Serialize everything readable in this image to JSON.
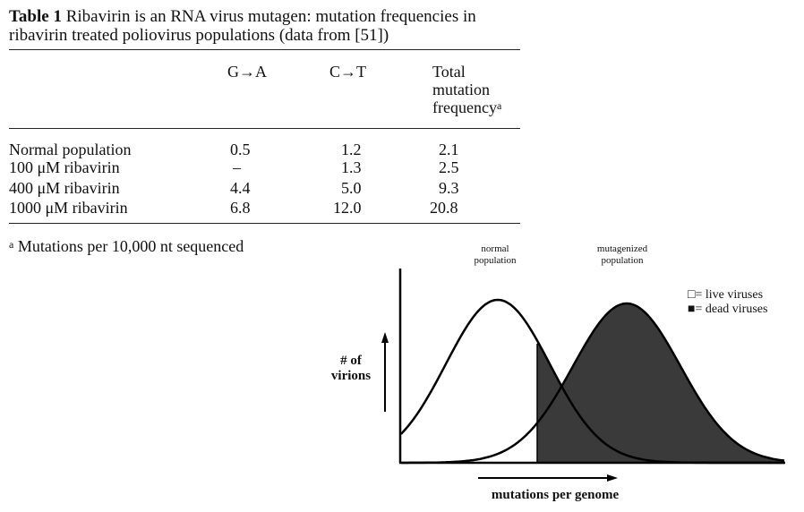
{
  "table": {
    "label": "Table 1",
    "caption": "Ribavirin is an RNA virus mutagen: mutation frequencies in ribavirin treated poliovirus populations (data from [51])",
    "columns": [
      "G→A",
      "C→T",
      "Total mutation frequency"
    ],
    "header_total_lines": [
      "Total",
      "mutation",
      "frequency"
    ],
    "header_total_superscript": "a",
    "rows": [
      {
        "label": "Normal population",
        "ga": "0.5",
        "ct": "1.2",
        "total": "2.1"
      },
      {
        "label": "100 μM ribavirin",
        "ga": "–",
        "ct": "1.3",
        "total": "2.5"
      },
      {
        "label": "400 μM ribavirin",
        "ga": "4.4",
        "ct": "5.0",
        "total": "9.3"
      },
      {
        "label": "1000 μM ribavirin",
        "ga": "6.8",
        "ct": "12.0",
        "total": "20.8"
      }
    ],
    "footnote_marker": "a",
    "footnote": "Mutations per 10,000 nt sequenced"
  },
  "figure": {
    "normal_label_lines": [
      "normal",
      "population"
    ],
    "mutagenized_label_lines": [
      "mutagenized",
      "population"
    ],
    "legend": [
      {
        "symbol": "□",
        "text": "= live viruses"
      },
      {
        "symbol": "■",
        "text": "= dead viruses"
      }
    ],
    "y_label_lines": [
      "# of",
      "virions"
    ],
    "x_label": "mutations per genome",
    "colors": {
      "dead": "#3a3a3a",
      "stroke": "#000000"
    }
  }
}
